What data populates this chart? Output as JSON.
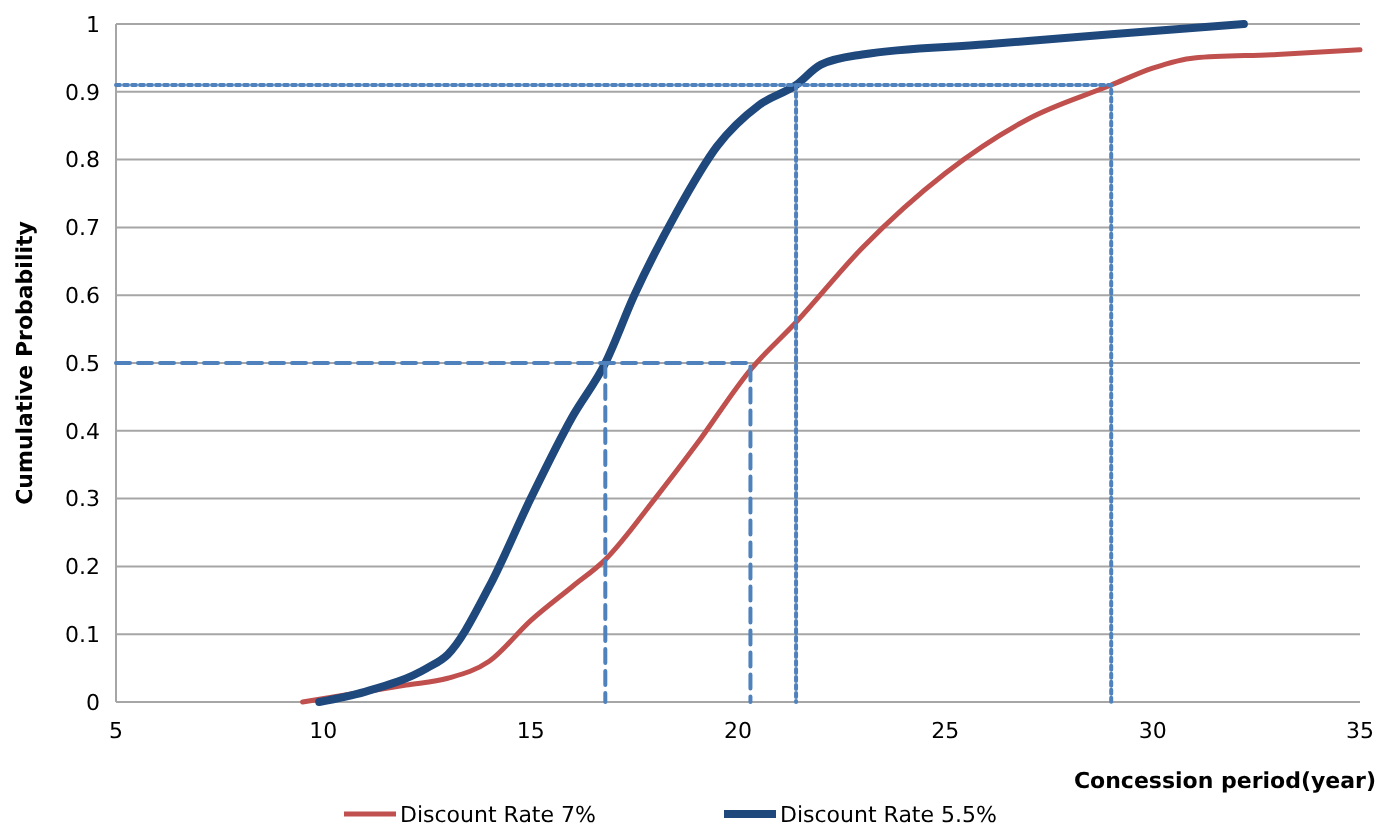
{
  "chart_data": {
    "type": "line",
    "xlabel": "Concession period(year)",
    "ylabel": "Cumulative Probability",
    "xlim": [
      5,
      35
    ],
    "xticks": [
      5,
      10,
      15,
      20,
      25,
      30,
      35
    ],
    "ylim": [
      0,
      1
    ],
    "yticks": [
      0,
      0.1,
      0.2,
      0.3,
      0.4,
      0.5,
      0.6,
      0.7,
      0.8,
      0.9,
      1
    ],
    "grid": "y",
    "legend": "bottom",
    "marker": "none",
    "series": [
      {
        "name": "Discount Rate 7%",
        "color": "#c0504d",
        "x": [
          9.5,
          12,
          13,
          14,
          15,
          16,
          16.8,
          18,
          19,
          20.3,
          21.4,
          23,
          25,
          27,
          29,
          30,
          31,
          33,
          35
        ],
        "values": [
          0,
          0.025,
          0.035,
          0.06,
          0.12,
          0.17,
          0.21,
          0.3,
          0.38,
          0.49,
          0.56,
          0.67,
          0.78,
          0.86,
          0.91,
          0.935,
          0.95,
          0.955,
          0.962
        ]
      },
      {
        "name": "Discount Rate 5.5%",
        "color": "#1f497d",
        "x": [
          9.9,
          11,
          12.5,
          13,
          14,
          15,
          16,
          16.8,
          17.5,
          18.5,
          19.5,
          20.5,
          21.4,
          22,
          23,
          26,
          29,
          32.2
        ],
        "values": [
          0,
          0.015,
          0.05,
          0.07,
          0.17,
          0.3,
          0.42,
          0.5,
          0.6,
          0.72,
          0.82,
          0.88,
          0.91,
          0.94,
          0.955,
          0.97,
          0.985,
          1
        ]
      },
      {
        "color": "#4f81bd",
        "line_style": "dashed",
        "x": [
          5,
          20.3,
          20.3
        ],
        "values": [
          0.5,
          0.5,
          0
        ]
      },
      {
        "color": "#4f81bd",
        "line_style": "dashed",
        "x": [
          16.8,
          16.8
        ],
        "values": [
          0.5,
          0
        ]
      },
      {
        "color": "#4f81bd",
        "line_style": "dotted",
        "x": [
          5,
          29,
          29
        ],
        "values": [
          0.91,
          0.91,
          0
        ]
      },
      {
        "color": "#4f81bd",
        "line_style": "dotted",
        "x": [
          21.4,
          21.4
        ],
        "values": [
          0.91,
          0
        ]
      }
    ]
  }
}
